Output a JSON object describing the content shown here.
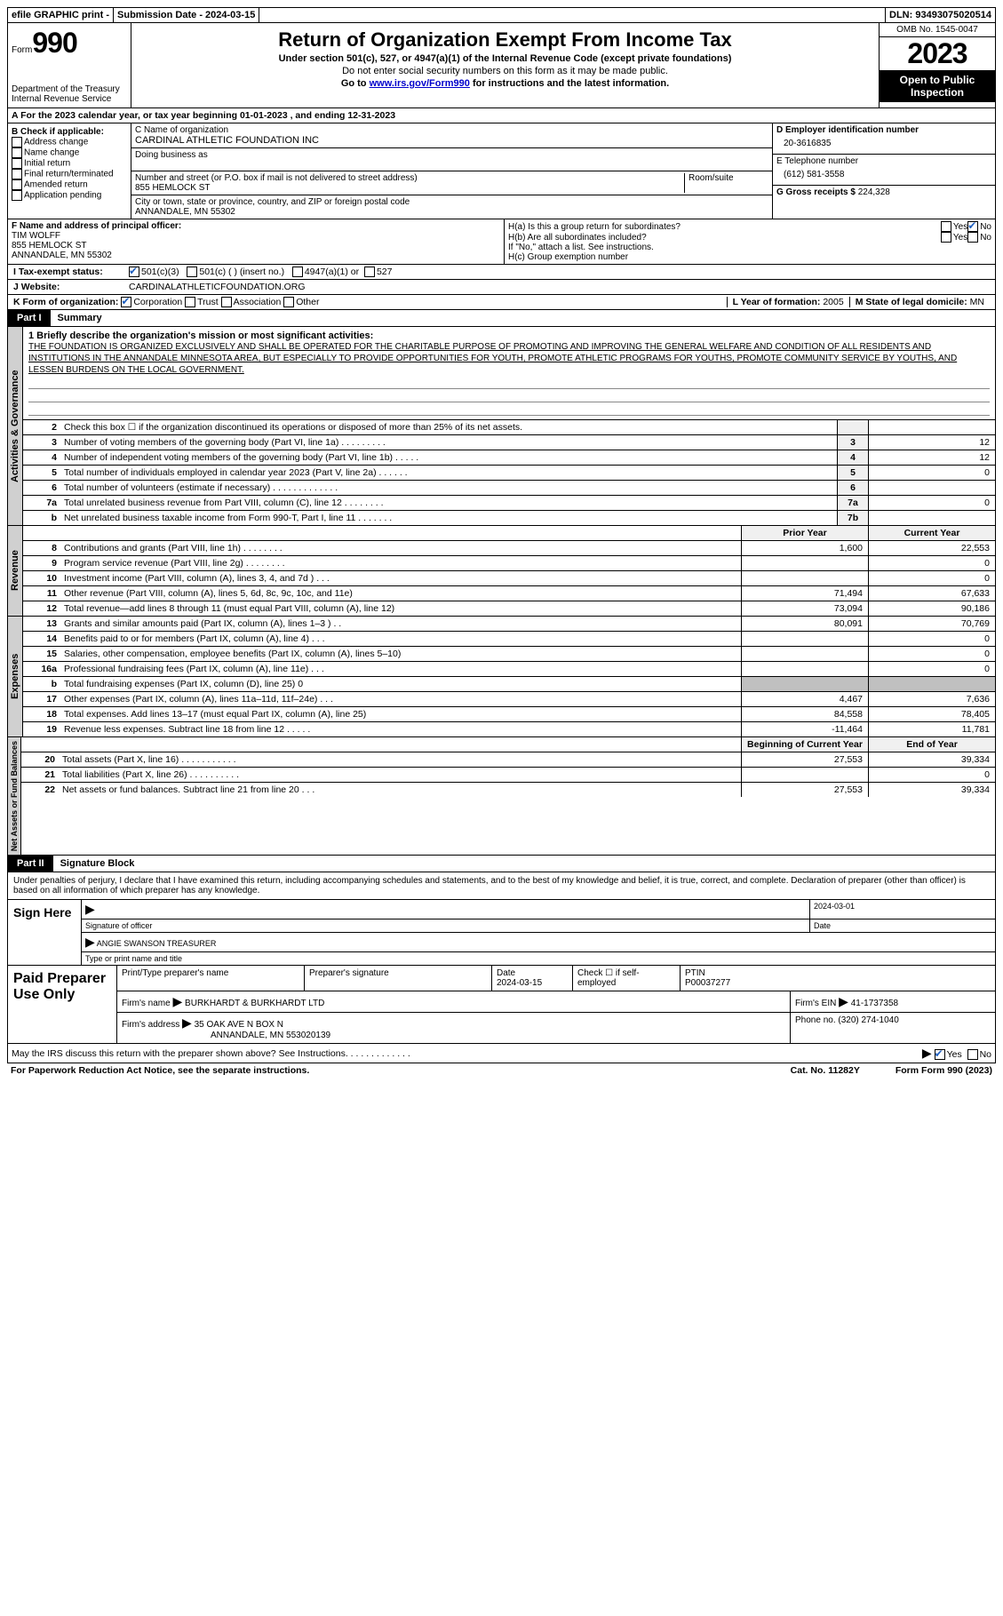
{
  "top": {
    "efile": "efile GRAPHIC print -",
    "submission_label": "Submission Date - ",
    "submission_date": "2024-03-15",
    "dln_label": "DLN: ",
    "dln": "93493075020514"
  },
  "header": {
    "form_label": "Form",
    "form_number": "990",
    "dept": "Department of the Treasury Internal Revenue Service",
    "title": "Return of Organization Exempt From Income Tax",
    "subtitle": "Under section 501(c), 527, or 4947(a)(1) of the Internal Revenue Code (except private foundations)",
    "ssn_note": "Do not enter social security numbers on this form as it may be made public.",
    "goto_prefix": "Go to ",
    "goto_link": "www.irs.gov/Form990",
    "goto_suffix": " for instructions and the latest information.",
    "omb": "OMB No. 1545-0047",
    "year": "2023",
    "inspection": "Open to Public Inspection"
  },
  "section_a": "A   For the 2023 calendar year, or tax year beginning 01-01-2023    , and ending 12-31-2023",
  "section_b": {
    "label": "B Check if applicable:",
    "items": [
      "Address change",
      "Name change",
      "Initial return",
      "Final return/terminated",
      "Amended return",
      "Application pending"
    ]
  },
  "section_c": {
    "name_label": "C Name of organization",
    "name": "CARDINAL ATHLETIC FOUNDATION INC",
    "dba_label": "Doing business as",
    "street_label": "Number and street (or P.O. box if mail is not delivered to street address)",
    "room_label": "Room/suite",
    "street": "855 HEMLOCK ST",
    "city_label": "City or town, state or province, country, and ZIP or foreign postal code",
    "city": "ANNANDALE, MN   55302"
  },
  "section_d": {
    "ein_label": "D Employer identification number",
    "ein": "20-3616835",
    "phone_label": "E Telephone number",
    "phone": "(612) 581-3558",
    "gross_label": "G Gross receipts $ ",
    "gross": "224,328"
  },
  "section_f": {
    "label": "F  Name and address of principal officer:",
    "name": "TIM WOLFF",
    "street": "855 HEMLOCK ST",
    "city": "ANNANDALE, MN  55302"
  },
  "section_h": {
    "ha": "H(a)  Is this a group return for subordinates?",
    "hb": "H(b)  Are all subordinates included?",
    "hb_note": "If \"No,\" attach a list. See instructions.",
    "hc": "H(c)  Group exemption number ",
    "yes": "Yes",
    "no": "No"
  },
  "tax_status": {
    "label": "I    Tax-exempt status:",
    "opt1": "501(c)(3)",
    "opt2": "501(c) (  ) (insert no.)",
    "opt3": "4947(a)(1) or",
    "opt4": "527"
  },
  "website": {
    "label": "J    Website:",
    "value": "CARDINALATHLETICFOUNDATION.ORG"
  },
  "form_org": {
    "label": "K Form of organization:",
    "corp": "Corporation",
    "trust": "Trust",
    "assoc": "Association",
    "other": "Other",
    "l_label": "L Year of formation: ",
    "l_val": "2005",
    "m_label": "M State of legal domicile: ",
    "m_val": "MN"
  },
  "part1": {
    "tab": "Part I",
    "title": "Summary"
  },
  "mission": {
    "label": "1   Briefly describe the organization's mission or most significant activities:",
    "text": "THE FOUNDATION IS ORGANIZED EXCLUSIVELY AND SHALL BE OPERATED FOR THE CHARITABLE PURPOSE OF PROMOTING AND IMPROVING THE GENERAL WELFARE AND CONDITION OF ALL RESIDENTS AND INSTITUTIONS IN THE ANNANDALE MINNESOTA AREA, BUT ESPECIALLY TO PROVIDE OPPORTUNITIES FOR YOUTH, PROMOTE ATHLETIC PROGRAMS FOR YOUTHS, PROMOTE COMMUNITY SERVICE BY YOUTHS, AND LESSEN BURDENS ON THE LOCAL GOVERNMENT."
  },
  "governance_lines": [
    {
      "num": "2",
      "label": "Check this box ☐ if the organization discontinued its operations or disposed of more than 25% of its net assets.",
      "box": "",
      "val": ""
    },
    {
      "num": "3",
      "label": "Number of voting members of the governing body (Part VI, line 1a)   .    .    .    .    .    .    .    .    .",
      "box": "3",
      "val": "12"
    },
    {
      "num": "4",
      "label": "Number of independent voting members of the governing body (Part VI, line 1b)   .    .    .    .    .",
      "box": "4",
      "val": "12"
    },
    {
      "num": "5",
      "label": "Total number of individuals employed in calendar year 2023 (Part V, line 2a)   .    .    .    .    .    .",
      "box": "5",
      "val": "0"
    },
    {
      "num": "6",
      "label": "Total number of volunteers (estimate if necessary)    .    .    .    .    .    .    .    .    .    .    .    .    .",
      "box": "6",
      "val": ""
    },
    {
      "num": "7a",
      "label": "Total unrelated business revenue from Part VIII, column (C), line 12    .    .    .    .    .    .    .    .",
      "box": "7a",
      "val": "0"
    },
    {
      "num": "b",
      "label": "Net unrelated business taxable income from Form 990-T, Part I, line 11   .    .    .    .    .    .    .",
      "box": "7b",
      "val": ""
    }
  ],
  "two_col_header": {
    "prior": "Prior Year",
    "current": "Current Year"
  },
  "revenue_lines": [
    {
      "num": "8",
      "label": "Contributions and grants (Part VIII, line 1h)    .    .    .    .    .    .    .    .",
      "prior": "1,600",
      "current": "22,553"
    },
    {
      "num": "9",
      "label": "Program service revenue (Part VIII, line 2g)    .    .    .    .    .    .    .    .",
      "prior": "",
      "current": "0"
    },
    {
      "num": "10",
      "label": "Investment income (Part VIII, column (A), lines 3, 4, and 7d )   .    .    .",
      "prior": "",
      "current": "0"
    },
    {
      "num": "11",
      "label": "Other revenue (Part VIII, column (A), lines 5, 6d, 8c, 9c, 10c, and 11e)",
      "prior": "71,494",
      "current": "67,633"
    },
    {
      "num": "12",
      "label": "Total revenue—add lines 8 through 11 (must equal Part VIII, column (A), line 12)",
      "prior": "73,094",
      "current": "90,186"
    }
  ],
  "expense_lines": [
    {
      "num": "13",
      "label": "Grants and similar amounts paid (Part IX, column (A), lines 1–3 )    .    .",
      "prior": "80,091",
      "current": "70,769"
    },
    {
      "num": "14",
      "label": "Benefits paid to or for members (Part IX, column (A), line 4)   .    .    .",
      "prior": "",
      "current": "0"
    },
    {
      "num": "15",
      "label": "Salaries, other compensation, employee benefits (Part IX, column (A), lines 5–10)",
      "prior": "",
      "current": "0"
    },
    {
      "num": "16a",
      "label": "Professional fundraising fees (Part IX, column (A), line 11e)   .    .    .",
      "prior": "",
      "current": "0"
    },
    {
      "num": "b",
      "label": "Total fundraising expenses (Part IX, column (D), line 25) 0",
      "prior": "GREY",
      "current": "GREY"
    },
    {
      "num": "17",
      "label": "Other expenses (Part IX, column (A), lines 11a–11d, 11f–24e)    .    .    .",
      "prior": "4,467",
      "current": "7,636"
    },
    {
      "num": "18",
      "label": "Total expenses. Add lines 13–17 (must equal Part IX, column (A), line 25)",
      "prior": "84,558",
      "current": "78,405"
    },
    {
      "num": "19",
      "label": "Revenue less expenses. Subtract line 18 from line 12    .    .    .    .    .",
      "prior": "-11,464",
      "current": "11,781"
    }
  ],
  "netassets_header": {
    "begin": "Beginning of Current Year",
    "end": "End of Year"
  },
  "netassets_lines": [
    {
      "num": "20",
      "label": "Total assets (Part X, line 16)    .    .    .    .    .    .    .    .    .    .    .",
      "prior": "27,553",
      "current": "39,334"
    },
    {
      "num": "21",
      "label": "Total liabilities (Part X, line 26)    .    .    .    .    .    .    .    .    .    .",
      "prior": "",
      "current": "0"
    },
    {
      "num": "22",
      "label": "Net assets or fund balances. Subtract line 21 from line 20    .    .    .",
      "prior": "27,553",
      "current": "39,334"
    }
  ],
  "vlabels": {
    "gov": "Activities & Governance",
    "rev": "Revenue",
    "exp": "Expenses",
    "net": "Net Assets or Fund Balances"
  },
  "part2": {
    "tab": "Part II",
    "title": "Signature Block"
  },
  "sig_intro": "Under penalties of perjury, I declare that I have examined this return, including accompanying schedules and statements, and to the best of my knowledge and belief, it is true, correct, and complete. Declaration of preparer (other than officer) is based on all information of which preparer has any knowledge.",
  "sign": {
    "left": "Sign Here",
    "sig_label": "Signature of officer",
    "date_label": "Date",
    "date": "2024-03-01",
    "officer": "ANGIE SWANSON  TREASURER",
    "type_label": "Type or print name and title"
  },
  "preparer": {
    "left": "Paid Preparer Use Only",
    "name_label": "Print/Type preparer's name",
    "sig_label": "Preparer's signature",
    "date_label": "Date",
    "date": "2024-03-15",
    "check_label": "Check ☐ if self-employed",
    "ptin_label": "PTIN",
    "ptin": "P00037277",
    "firm_name_label": "Firm's name   ",
    "firm_name": "BURKHARDT & BURKHARDT LTD",
    "firm_ein_label": "Firm's EIN  ",
    "firm_ein": "41-1737358",
    "firm_addr_label": "Firm's address ",
    "firm_addr1": "35 OAK AVE N BOX N",
    "firm_addr2": "ANNANDALE, MN  553020139",
    "phone_label": "Phone no. ",
    "phone": "(320) 274-1040"
  },
  "discuss": {
    "label": "May the IRS discuss this return with the preparer shown above? See Instructions.    .    .    .    .    .    .    .    .    .    .    .    .",
    "yes": "Yes",
    "no": "No"
  },
  "footer": {
    "pra": "For Paperwork Reduction Act Notice, see the separate instructions.",
    "cat": "Cat. No. 11282Y",
    "form": "Form 990 (2023)"
  }
}
